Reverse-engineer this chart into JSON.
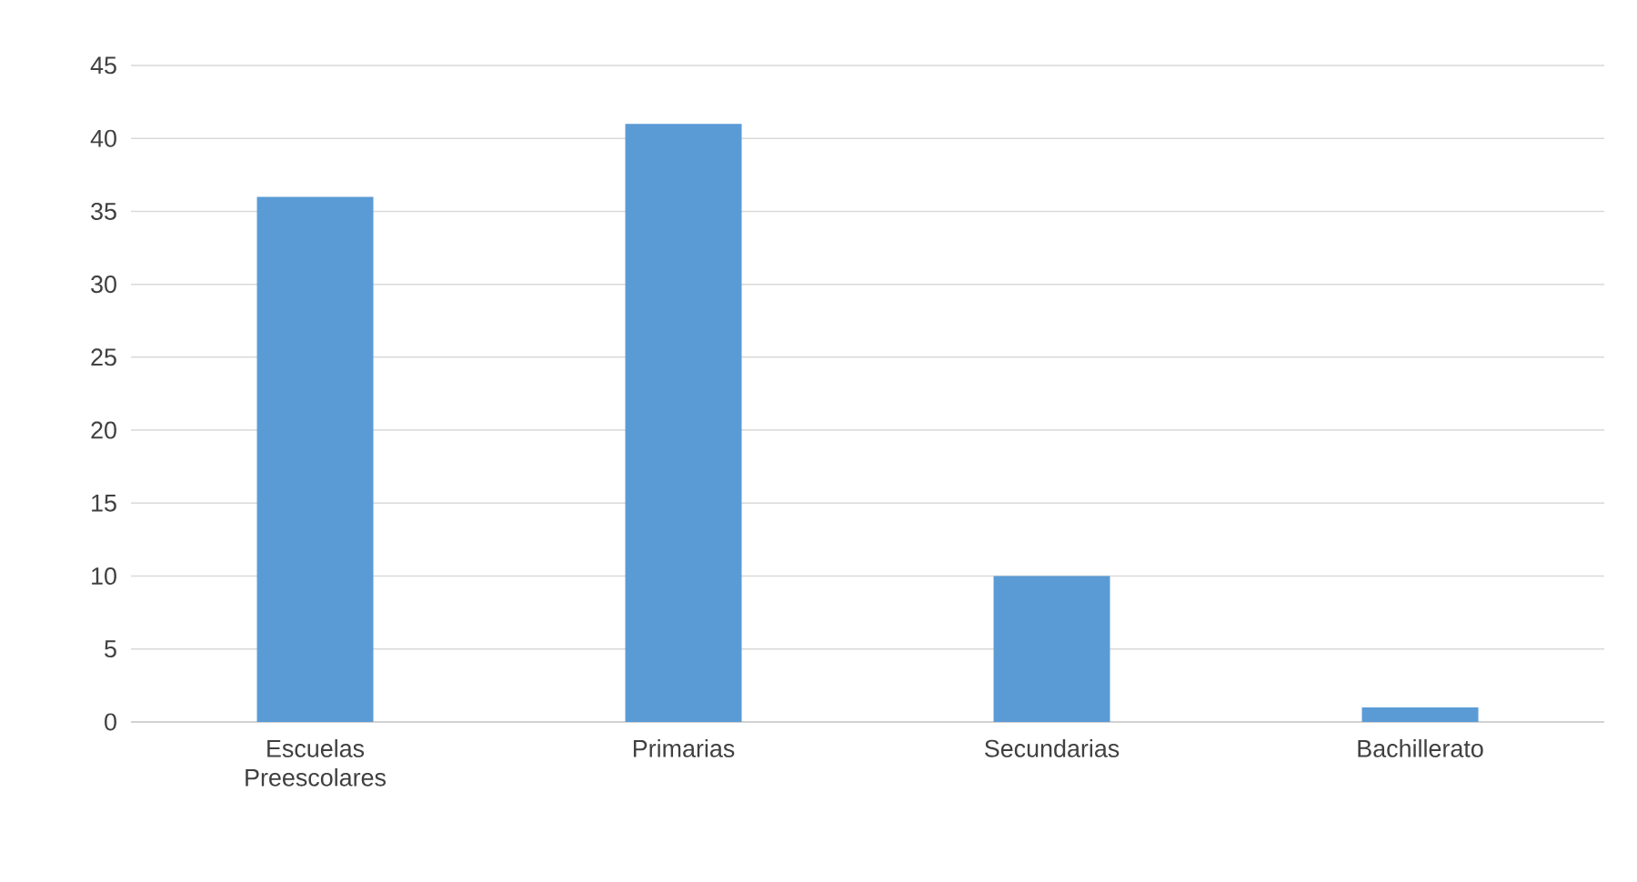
{
  "chart_data": {
    "type": "bar",
    "categories": [
      "Escuelas Preescolares",
      "Primarias",
      "Secundarias",
      "Bachillerato"
    ],
    "values": [
      36,
      41,
      10,
      1
    ],
    "color": "#5b9bd5",
    "ylim": [
      0,
      45
    ],
    "yticks": [
      0,
      5,
      10,
      15,
      20,
      25,
      30,
      35,
      40,
      45
    ],
    "grid": "y"
  }
}
